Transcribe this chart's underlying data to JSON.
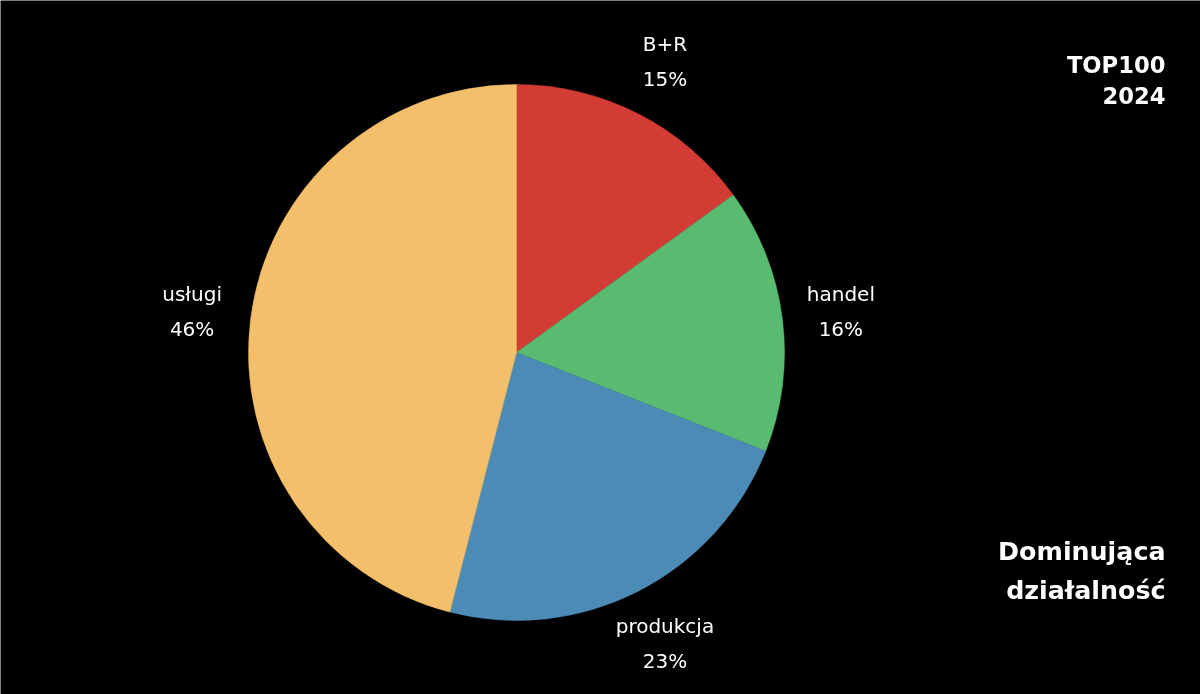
{
  "chart_data": {
    "type": "pie",
    "title": "Dominująca działalność",
    "annotations": [
      "TOP100 2024"
    ],
    "categories": [
      "B+R",
      "handel",
      "produkcja",
      "usługi"
    ],
    "values": [
      15,
      16,
      23,
      46
    ],
    "value_labels": [
      "15%",
      "16%",
      "23%",
      "46%"
    ],
    "colors": [
      "#d33b35",
      "#58bb6f",
      "#4d8bb7",
      "#f3bf6b"
    ],
    "legend": false
  }
}
